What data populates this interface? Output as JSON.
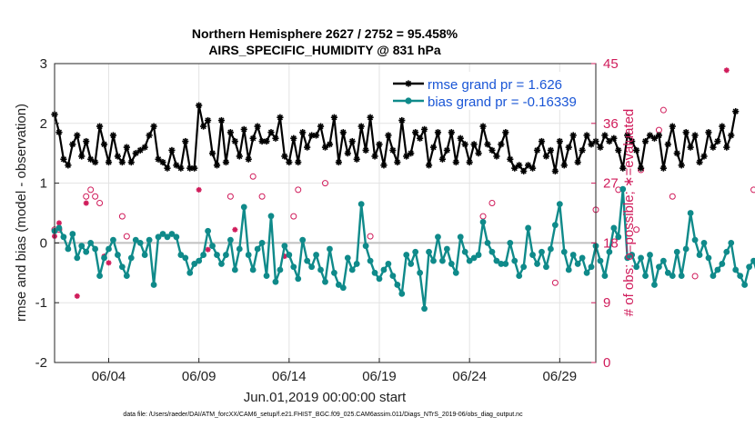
{
  "chart_data": {
    "type": "line",
    "title": "Northern Hemisphere 2627 / 2752 = 95.458%",
    "subtitle": "AIRS_SPECIFIC_HUMIDITY @ 831 hPa",
    "xlabel": "Jun.01,2019 00:00:00 start",
    "ylabel": "rmse and bias (model - observation)",
    "y2label": "# of obs: o=possible; ∗=evaluated",
    "footnote": "data file: /Users/raeder/DAI/ATM_forcXX/CAM6_setup/f.e21.FHIST_BGC.f09_025.CAM6assim.011/Diags_NTrS_2019-06/obs_diag_output.nc",
    "xlim": [
      1.0,
      31.0
    ],
    "ylim": [
      -2,
      3
    ],
    "y2lim": [
      0,
      45
    ],
    "x_ticks": [
      4,
      9,
      14,
      19,
      24,
      29
    ],
    "x_tick_labels": [
      "06/04",
      "06/09",
      "06/14",
      "06/19",
      "06/24",
      "06/29"
    ],
    "y_ticks": [
      "-2",
      "-1",
      "0",
      "1",
      "2",
      "3"
    ],
    "y2_ticks": [
      "0",
      "9",
      "18",
      "27",
      "36",
      "45"
    ],
    "colors": {
      "rmse": "#000000",
      "bias": "#0f8a8a",
      "obs": "#d01c5b",
      "zero_line": "#c0c0c0",
      "legend_text": "#1a56d6"
    },
    "x_start": 1.0,
    "x_step": 0.25,
    "series": [
      {
        "name": "rmse grand pr = 1.626",
        "values": [
          2.15,
          1.85,
          1.4,
          1.3,
          1.65,
          1.8,
          1.45,
          1.7,
          1.4,
          1.35,
          1.95,
          1.65,
          1.35,
          1.8,
          1.45,
          1.35,
          1.6,
          1.35,
          1.5,
          1.55,
          1.6,
          1.8,
          1.95,
          1.4,
          1.35,
          1.25,
          1.55,
          1.3,
          1.25,
          1.7,
          1.25,
          1.25,
          2.3,
          1.95,
          2.05,
          1.5,
          1.3,
          2.05,
          1.35,
          1.85,
          1.7,
          1.45,
          1.9,
          1.4,
          1.75,
          1.95,
          1.7,
          1.7,
          1.85,
          1.75,
          2.1,
          1.45,
          1.35,
          1.75,
          1.35,
          1.85,
          1.6,
          1.8,
          1.8,
          1.95,
          1.6,
          1.65,
          2.1,
          1.35,
          1.85,
          1.5,
          1.7,
          1.4,
          1.95,
          1.55,
          2.1,
          1.45,
          1.65,
          1.3,
          1.8,
          1.55,
          1.35,
          2.05,
          1.45,
          1.5,
          1.85,
          1.75,
          1.9,
          1.3,
          1.6,
          1.85,
          1.4,
          1.55,
          1.85,
          1.35,
          1.75,
          1.65,
          1.35,
          1.65,
          1.5,
          1.95,
          1.65,
          1.55,
          1.45,
          1.65,
          1.85,
          1.4,
          1.25,
          1.3,
          1.2,
          1.3,
          1.25,
          1.55,
          1.7,
          1.45,
          1.55,
          1.2,
          1.7,
          1.3,
          1.6,
          1.8,
          1.35,
          1.55,
          1.8,
          1.65,
          1.7,
          1.6,
          1.8,
          1.7,
          1.75,
          1.55,
          1.25,
          1.8,
          1.7,
          1.55,
          1.25,
          1.7,
          1.8,
          1.75,
          1.8,
          1.25,
          1.65,
          1.95,
          1.5,
          1.3,
          1.85,
          1.6,
          1.8,
          1.35,
          1.45,
          1.85,
          1.6,
          1.7,
          1.95,
          1.6,
          1.8,
          2.2
        ]
      },
      {
        "name": "bias grand pr = -0.16339",
        "values": [
          0.2,
          0.25,
          0.1,
          -0.1,
          0.15,
          -0.25,
          -0.05,
          -0.15,
          0.0,
          -0.1,
          -0.55,
          -0.25,
          -0.1,
          0.05,
          -0.2,
          -0.4,
          -0.55,
          -0.25,
          0.05,
          0.0,
          -0.2,
          0.05,
          -0.7,
          0.1,
          0.15,
          0.1,
          0.15,
          0.1,
          -0.2,
          -0.25,
          -0.5,
          -0.35,
          -0.3,
          -0.2,
          0.2,
          -0.05,
          -0.2,
          -0.35,
          -0.2,
          0.05,
          -0.45,
          -0.1,
          0.6,
          -0.2,
          -0.45,
          -0.1,
          0.0,
          -0.55,
          0.45,
          -0.65,
          -0.45,
          -0.05,
          -0.2,
          -0.4,
          -0.6,
          0.05,
          -0.3,
          -0.4,
          -0.2,
          -0.45,
          -0.65,
          -0.1,
          -0.5,
          -0.7,
          -0.75,
          -0.25,
          -0.45,
          -0.35,
          0.65,
          -0.05,
          -0.3,
          -0.5,
          -0.6,
          -0.45,
          -0.35,
          -0.55,
          -0.7,
          -0.85,
          -0.2,
          -0.35,
          -0.15,
          -0.5,
          -1.1,
          -0.15,
          -0.3,
          0.1,
          -0.3,
          -0.1,
          -0.35,
          -0.5,
          0.1,
          -0.15,
          -0.3,
          -0.25,
          -0.2,
          0.35,
          0.0,
          -0.15,
          -0.3,
          -0.35,
          -0.35,
          0.0,
          -0.3,
          -0.55,
          -0.4,
          0.25,
          -0.2,
          -0.35,
          -0.15,
          -0.4,
          -0.1,
          0.3,
          0.65,
          -0.15,
          -0.45,
          -0.2,
          -0.35,
          -0.25,
          -0.5,
          -0.4,
          -0.05,
          -0.3,
          -0.55,
          -0.15,
          0.25,
          0.1,
          0.9,
          -0.25,
          -0.2,
          -0.4,
          -0.25,
          -0.55,
          -0.2,
          -0.7,
          -0.4,
          -0.3,
          -0.5,
          -0.55,
          -0.15,
          -0.55,
          -0.1,
          0.5,
          0.05,
          -0.2,
          0.0,
          -0.25,
          -0.55,
          -0.45,
          -0.35,
          -0.15,
          0.0,
          -0.45,
          -0.55,
          -0.7,
          -0.4,
          -0.3,
          -0.55
        ]
      },
      {
        "name": "obs possible",
        "axis": "right",
        "marker": "o",
        "values": [
          20,
          20,
          null,
          null,
          null,
          null,
          null,
          25,
          26,
          25,
          24,
          null,
          null,
          null,
          null,
          22,
          19,
          null,
          null,
          null,
          null,
          null,
          null,
          null,
          null,
          null,
          null,
          null,
          null,
          null,
          null,
          null,
          null,
          null,
          null,
          null,
          null,
          null,
          null,
          25,
          null,
          null,
          null,
          null,
          28,
          null,
          25,
          null,
          null,
          null,
          null,
          null,
          null,
          22,
          26,
          null,
          null,
          null,
          null,
          null,
          27,
          null,
          null,
          null,
          null,
          null,
          null,
          null,
          null,
          null,
          19,
          null,
          null,
          null,
          null,
          null,
          null,
          null,
          null,
          null,
          null,
          null,
          null,
          null,
          null,
          null,
          null,
          null,
          null,
          null,
          null,
          null,
          null,
          null,
          null,
          22,
          null,
          24,
          null,
          null,
          null,
          null,
          null,
          null,
          null,
          null,
          null,
          null,
          null,
          null,
          null,
          12,
          null,
          null,
          null,
          null,
          null,
          null,
          null,
          null,
          23,
          null,
          null,
          null,
          null,
          26,
          null,
          null,
          null,
          20,
          29,
          null,
          null,
          null,
          35,
          38,
          null,
          25,
          null,
          null,
          null,
          null,
          13,
          null,
          null,
          null,
          null,
          null,
          null,
          null,
          null,
          null,
          null,
          null,
          null,
          26,
          null,
          null,
          null,
          null
        ]
      },
      {
        "name": "obs evaluated",
        "axis": "right",
        "marker": "*",
        "values": [
          19,
          21,
          null,
          null,
          null,
          10,
          null,
          24,
          null,
          null,
          null,
          16,
          15,
          null,
          null,
          null,
          null,
          null,
          null,
          null,
          null,
          null,
          null,
          null,
          null,
          null,
          null,
          null,
          null,
          null,
          null,
          null,
          26,
          null,
          17,
          null,
          null,
          null,
          null,
          null,
          20,
          null,
          null,
          null,
          null,
          null,
          null,
          null,
          null,
          null,
          null,
          16,
          null,
          null,
          null,
          null,
          null,
          null,
          null,
          null,
          null,
          null,
          null,
          null,
          null,
          null,
          null,
          null,
          null,
          null,
          null,
          null,
          null,
          null,
          null,
          null,
          null,
          null,
          null,
          null,
          null,
          null,
          null,
          null,
          null,
          null,
          null,
          null,
          null,
          null,
          null,
          null,
          null,
          null,
          null,
          null,
          null,
          null,
          null,
          null,
          null,
          null,
          null,
          null,
          null,
          null,
          null,
          null,
          null,
          null,
          null,
          null,
          null,
          null,
          null,
          null,
          null,
          null,
          null,
          null,
          null,
          null,
          null,
          null,
          null,
          null,
          null,
          null,
          null,
          null,
          null,
          null,
          null,
          null,
          null,
          null,
          null,
          null,
          null,
          null,
          null,
          null,
          null,
          null,
          null,
          null,
          null,
          null,
          null,
          44,
          null,
          null,
          null,
          null,
          null,
          null,
          null,
          null,
          null,
          null,
          null,
          null
        ]
      }
    ]
  }
}
